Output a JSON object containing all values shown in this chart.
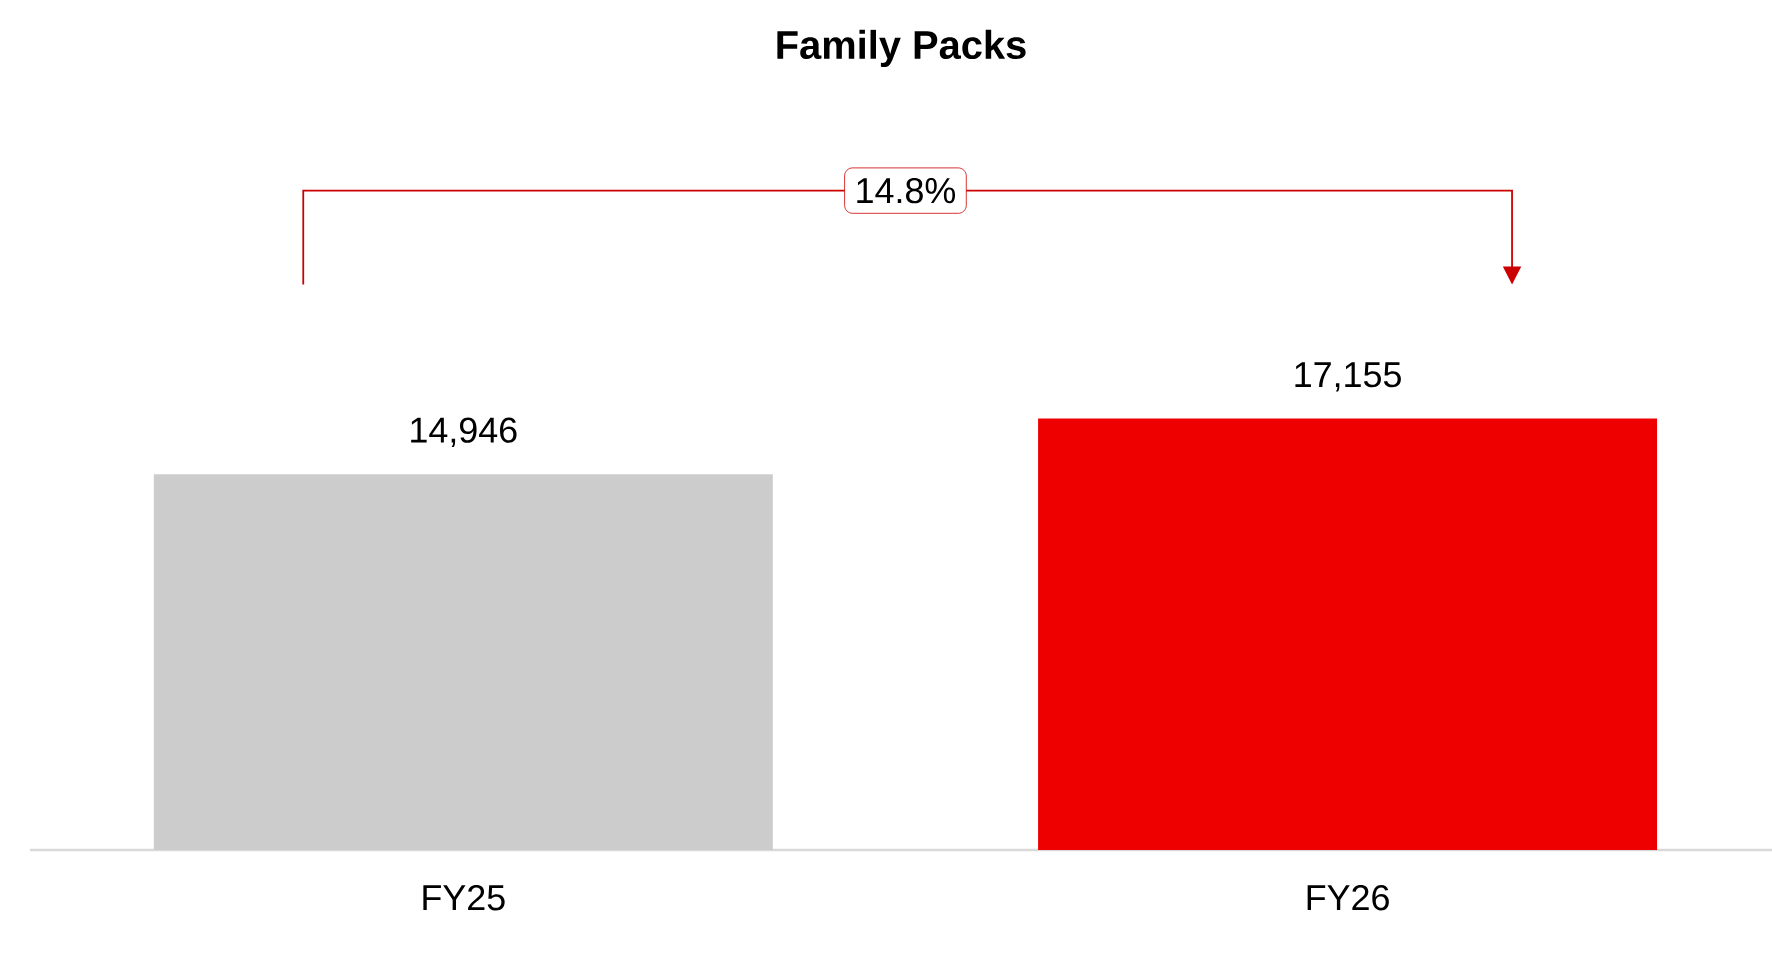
{
  "chart_data": {
    "type": "bar",
    "title": "Family Packs",
    "categories": [
      "FY25",
      "FY26"
    ],
    "values": [
      14946,
      17155
    ],
    "value_labels": [
      "14,946",
      "17,155"
    ],
    "colors": [
      "#cccccc",
      "#ee0000"
    ],
    "tick_labels": "x",
    "annotations": [
      "14.8%"
    ]
  }
}
